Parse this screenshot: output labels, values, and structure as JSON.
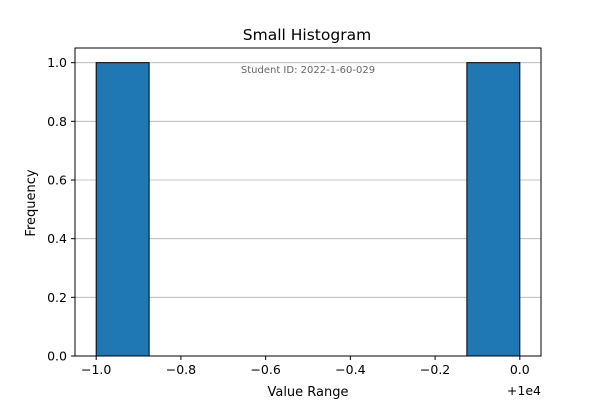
{
  "chart_data": {
    "type": "bar",
    "title": "Small Histogram",
    "xlabel": "Value Range",
    "ylabel": "Frequency",
    "x_offset_label": "+1e4",
    "annotation": "Student ID: 2022-1-60-029",
    "xlim": [
      -1.05,
      0.05
    ],
    "ylim": [
      0,
      1.05
    ],
    "x_ticks": [
      -1.0,
      -0.8,
      -0.6,
      -0.4,
      -0.2,
      0.0
    ],
    "x_tick_labels": [
      "−1.0",
      "−0.8",
      "−0.6",
      "−0.4",
      "−0.2",
      "0.0"
    ],
    "y_ticks": [
      0.0,
      0.2,
      0.4,
      0.6,
      0.8,
      1.0
    ],
    "y_tick_labels": [
      "0.0",
      "0.2",
      "0.4",
      "0.6",
      "0.8",
      "1.0"
    ],
    "grid": "y",
    "bins": [
      {
        "start": -1.0,
        "end": -0.875,
        "count": 1
      },
      {
        "start": -0.125,
        "end": 0.0,
        "count": 1
      }
    ],
    "bar_color": "#1f77b4",
    "edge_color": "#000000",
    "grid_color": "#b0b0b0"
  }
}
